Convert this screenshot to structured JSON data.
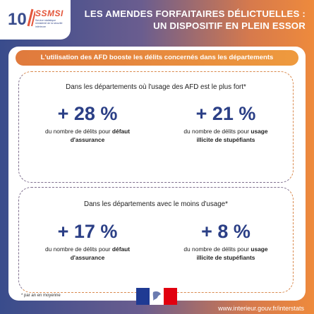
{
  "brand": {
    "logo_number": "10",
    "name": "SSMSI",
    "subtitle": "Service statistique ministériel de la sécurité intérieure",
    "colors": {
      "blue": "#394c8c",
      "orange": "#e4573c",
      "stat_blue": "#2b3f86"
    }
  },
  "header": {
    "title_line1": "LES AMENDES FORFAITAIRES DÉLICTUELLES :",
    "title_line2": "UN DISPOSITIF EN PLEIN ESSOR"
  },
  "banner": {
    "text": "L'utilisation des AFD booste les délits concernés dans les départements"
  },
  "sections": [
    {
      "heading": "Dans les départements où l'usage des AFD est le plus fort*",
      "stats": [
        {
          "value": "+ 28 %",
          "desc_prefix": "du nombre de délits pour ",
          "desc_bold1": "défaut",
          "desc_bold2": "d'assurance"
        },
        {
          "value": "+ 21 %",
          "desc_prefix": "du nombre de délits pour ",
          "desc_bold1": "usage",
          "desc_bold2": "illicite de stupéfiants"
        }
      ]
    },
    {
      "heading": "Dans les départements avec le moins d'usage*",
      "stats": [
        {
          "value": "+ 17 %",
          "desc_prefix": "du nombre de délits pour ",
          "desc_bold1": "défaut",
          "desc_bold2": "d'assurance"
        },
        {
          "value": "+ 8 %",
          "desc_prefix": "du nombre de délits pour ",
          "desc_bold1": "usage",
          "desc_bold2": "illicite de stupéfiants"
        }
      ]
    }
  ],
  "footnote": "* par an en moyenne",
  "footer": {
    "url": "www.interieur.gouv.fr/interstats",
    "emblem": "marianne-flag-icon"
  }
}
